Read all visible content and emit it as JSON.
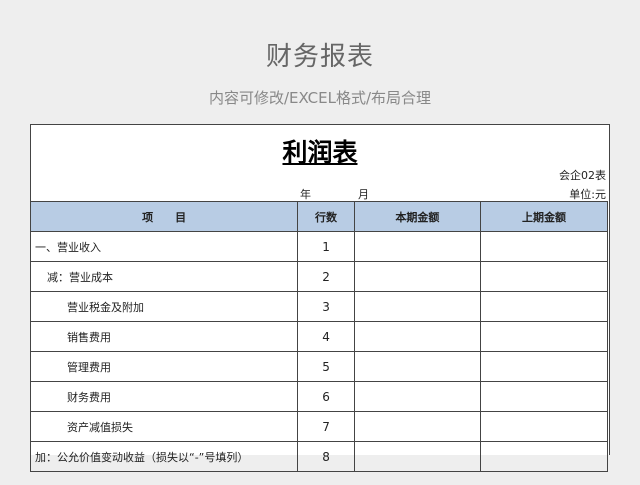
{
  "header": {
    "title": "财务报表",
    "subtitle": "内容可修改/EXCEL格式/布局合理"
  },
  "sheet": {
    "title": "利润表",
    "code": "会企02表",
    "year": "年",
    "month": "月",
    "unit": "单位:元",
    "columns": [
      "项　　目",
      "行数",
      "本期金额",
      "上期金额"
    ],
    "rows": [
      {
        "item": "一、营业收入",
        "no": "1",
        "indent": 0
      },
      {
        "item": "减：营业成本",
        "no": "2",
        "indent": 1
      },
      {
        "item": "营业税金及附加",
        "no": "3",
        "indent": 2
      },
      {
        "item": "销售费用",
        "no": "4",
        "indent": 2
      },
      {
        "item": "管理费用",
        "no": "5",
        "indent": 2
      },
      {
        "item": "财务费用",
        "no": "6",
        "indent": 2
      },
      {
        "item": "资产减值损失",
        "no": "7",
        "indent": 2
      },
      {
        "item": "加：公允价值变动收益（损失以“-”号填列）",
        "no": "8",
        "indent": 0
      }
    ]
  }
}
